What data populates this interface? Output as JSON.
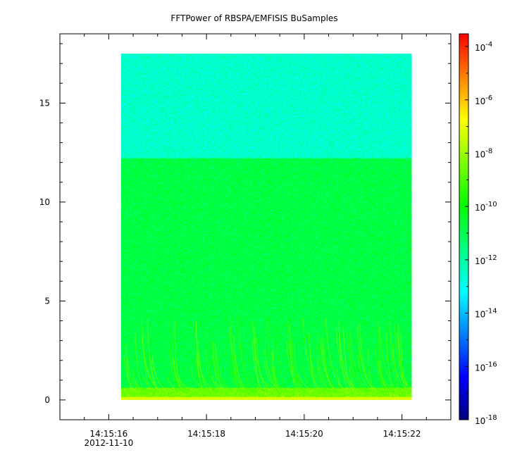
{
  "chart_data": {
    "type": "heatmap",
    "title": "FFTPower of RBSPA/EMFISIS  BuSamples",
    "x_axis": {
      "range_seconds": [
        "14:15:15.0",
        "14:15:23.0"
      ],
      "ticks": [
        {
          "time": "14:15:16",
          "value": 16,
          "date": "2012-11-10"
        },
        {
          "time": "14:15:18",
          "value": 18
        },
        {
          "time": "14:15:20",
          "value": 20
        },
        {
          "time": "14:15:22",
          "value": 22
        }
      ],
      "minor_tick_values": [
        15.0,
        15.5,
        16.5,
        17.0,
        17.5,
        18.5,
        19.0,
        19.5,
        20.5,
        21.0,
        21.5,
        22.5
      ],
      "data_range": [
        16.25,
        22.2
      ]
    },
    "y_axis": {
      "range": [
        -1,
        18.5
      ],
      "ticks": [
        0,
        5,
        10,
        15
      ],
      "minor_tick_step": 1,
      "data_range": [
        0,
        17.5
      ]
    },
    "colorbar": {
      "scale": "log",
      "range": [
        1e-18,
        0.0003
      ],
      "ticks": [
        {
          "exp": "-4",
          "value": 0.0001
        },
        {
          "exp": "-6",
          "value": 1e-06
        },
        {
          "exp": "-8",
          "value": 1e-08
        },
        {
          "exp": "-10",
          "value": 1e-10
        },
        {
          "exp": "-12",
          "value": 1e-12
        },
        {
          "exp": "-14",
          "value": 1e-14
        },
        {
          "exp": "-16",
          "value": 1e-16
        },
        {
          "exp": "-18",
          "value": 1e-18
        }
      ],
      "colormap": [
        "#00007f",
        "#0000ff",
        "#0080ff",
        "#00ffff",
        "#00ff80",
        "#00ff00",
        "#80ff00",
        "#ffff00",
        "#ff8000",
        "#ff0000"
      ]
    },
    "regions": [
      {
        "y_range": [
          12.2,
          17.5
        ],
        "power_exp": -12.5
      },
      {
        "y_range": [
          0.6,
          12.2
        ],
        "power_exp": -10.8
      },
      {
        "y_range": [
          0.15,
          0.6
        ],
        "power_exp": -8.6
      },
      {
        "y_range": [
          0,
          0.15
        ],
        "power_exp": -7.0
      }
    ],
    "chorus_bursts_start_seconds": [
      16.4,
      16.8,
      17.3,
      17.7,
      18.1,
      18.6,
      19.0,
      19.3,
      19.7,
      20.0,
      20.4,
      20.8,
      21.2,
      21.6,
      21.9
    ]
  }
}
